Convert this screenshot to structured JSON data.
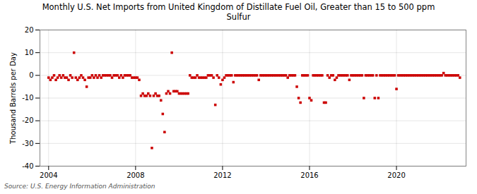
{
  "chart_data": {
    "type": "scatter",
    "title": "Monthly U.S. Net Imports from United Kingdom of Distillate Fuel Oil, Greater than 15 to 500 ppm\nSulfur",
    "ylabel": "Thousand Barrels per Day",
    "source": "Source: U.S. Energy Information Administration",
    "color": "#cc0000",
    "marker": "square",
    "grid": true,
    "xlim": [
      2003.6,
      2023.2
    ],
    "xticks": [
      2004,
      2008,
      2012,
      2016,
      2020
    ],
    "ylim": [
      -40,
      20
    ],
    "yticks": [
      -40,
      -30,
      -20,
      -10,
      0,
      10,
      20
    ],
    "x": [
      2004.0,
      2004.083,
      2004.167,
      2004.25,
      2004.333,
      2004.417,
      2004.5,
      2004.583,
      2004.667,
      2004.75,
      2004.833,
      2004.917,
      2005.0,
      2005.083,
      2005.167,
      2005.25,
      2005.333,
      2005.417,
      2005.5,
      2005.583,
      2005.667,
      2005.75,
      2005.833,
      2005.917,
      2006.0,
      2006.083,
      2006.167,
      2006.25,
      2006.333,
      2006.417,
      2006.5,
      2006.583,
      2006.667,
      2006.75,
      2006.833,
      2006.917,
      2007.0,
      2007.083,
      2007.167,
      2007.25,
      2007.333,
      2007.417,
      2007.5,
      2007.583,
      2007.667,
      2007.75,
      2007.833,
      2007.917,
      2008.0,
      2008.083,
      2008.167,
      2008.25,
      2008.333,
      2008.417,
      2008.5,
      2008.583,
      2008.667,
      2008.75,
      2008.833,
      2008.917,
      2009.0,
      2009.083,
      2009.167,
      2009.25,
      2009.333,
      2009.417,
      2009.5,
      2009.583,
      2009.667,
      2009.75,
      2009.833,
      2009.917,
      2010.0,
      2010.083,
      2010.167,
      2010.25,
      2010.333,
      2010.417,
      2010.5,
      2010.583,
      2010.667,
      2010.75,
      2010.833,
      2010.917,
      2011.0,
      2011.083,
      2011.167,
      2011.25,
      2011.333,
      2011.417,
      2011.5,
      2011.583,
      2011.667,
      2011.75,
      2011.833,
      2011.917,
      2012.0,
      2012.083,
      2012.167,
      2012.25,
      2012.333,
      2012.417,
      2012.5,
      2012.583,
      2012.667,
      2012.75,
      2012.833,
      2012.917,
      2013.0,
      2013.083,
      2013.167,
      2013.25,
      2013.333,
      2013.417,
      2013.5,
      2013.583,
      2013.667,
      2013.75,
      2013.833,
      2013.917,
      2014.0,
      2014.083,
      2014.167,
      2014.25,
      2014.333,
      2014.417,
      2014.5,
      2014.583,
      2014.667,
      2014.75,
      2014.833,
      2014.917,
      2015.0,
      2015.083,
      2015.167,
      2015.25,
      2015.333,
      2015.417,
      2015.5,
      2015.583,
      2015.667,
      2015.75,
      2015.833,
      2015.917,
      2016.0,
      2016.083,
      2016.167,
      2016.25,
      2016.333,
      2016.417,
      2016.5,
      2016.583,
      2016.667,
      2016.75,
      2016.833,
      2016.917,
      2017.0,
      2017.083,
      2017.167,
      2017.25,
      2017.333,
      2017.417,
      2017.5,
      2017.583,
      2017.667,
      2017.75,
      2017.833,
      2017.917,
      2018.0,
      2018.083,
      2018.167,
      2018.25,
      2018.333,
      2018.417,
      2018.5,
      2018.583,
      2018.667,
      2018.75,
      2018.833,
      2018.917,
      2019.0,
      2019.083,
      2019.167,
      2019.25,
      2019.333,
      2019.417,
      2019.5,
      2019.583,
      2019.667,
      2019.75,
      2019.833,
      2019.917,
      2020.0,
      2020.083,
      2020.167,
      2020.25,
      2020.333,
      2020.417,
      2020.5,
      2020.583,
      2020.667,
      2020.75,
      2020.833,
      2020.917,
      2021.0,
      2021.083,
      2021.167,
      2021.25,
      2021.333,
      2021.417,
      2021.5,
      2021.583,
      2021.667,
      2021.75,
      2021.833,
      2021.917,
      2022.0,
      2022.083,
      2022.167,
      2022.25,
      2022.333,
      2022.417,
      2022.5,
      2022.583,
      2022.667,
      2022.75,
      2022.833,
      2022.917
    ],
    "values": [
      -1,
      -2,
      -1,
      0,
      -2,
      -1,
      0,
      -1,
      0,
      -1,
      -1,
      -2,
      0,
      -1,
      10,
      -1,
      -2,
      -1,
      0,
      -1,
      -2,
      -5,
      -1,
      -1,
      0,
      -1,
      0,
      -1,
      0,
      -1,
      0,
      0,
      0,
      0,
      0,
      -1,
      0,
      0,
      0,
      -1,
      0,
      -1,
      0,
      0,
      0,
      0,
      -1,
      -1,
      -1,
      -1,
      -2,
      -9,
      -8,
      -9,
      -9,
      -8,
      -9,
      -32,
      -9,
      -8,
      -9,
      -9,
      -11,
      -17,
      -25,
      -8,
      -7,
      -8,
      10,
      -7,
      -7,
      -7,
      -8,
      -8,
      -8,
      -8,
      -8,
      -8,
      0,
      -1,
      -1,
      -1,
      0,
      -1,
      -1,
      -1,
      -1,
      -1,
      0,
      0,
      0,
      -1,
      -13,
      0,
      -1,
      -4,
      -2,
      -1,
      0,
      0,
      0,
      0,
      -3,
      0,
      0,
      0,
      0,
      0,
      0,
      0,
      0,
      0,
      0,
      0,
      0,
      0,
      -2,
      0,
      0,
      0,
      0,
      0,
      0,
      0,
      0,
      0,
      0,
      0,
      0,
      0,
      0,
      0,
      -1,
      0,
      0,
      0,
      0,
      -5,
      -10,
      -12,
      0,
      0,
      0,
      0,
      -10,
      -11,
      0,
      0,
      0,
      0,
      0,
      0,
      -12,
      -12,
      0,
      -1,
      0,
      0,
      -2,
      -1,
      0,
      0,
      0,
      0,
      0,
      0,
      -2,
      0,
      0,
      0,
      0,
      0,
      0,
      0,
      -10,
      0,
      0,
      0,
      0,
      0,
      -10,
      0,
      -10,
      0,
      0,
      0,
      0,
      0,
      0,
      0,
      0,
      0,
      -6,
      0,
      0,
      0,
      0,
      0,
      0,
      0,
      0,
      0,
      0,
      0,
      0,
      0,
      0,
      0,
      0,
      0,
      0,
      0,
      0,
      0,
      0,
      0,
      0,
      0,
      1,
      0,
      0,
      0,
      0,
      0,
      0,
      0,
      0,
      -1
    ]
  }
}
